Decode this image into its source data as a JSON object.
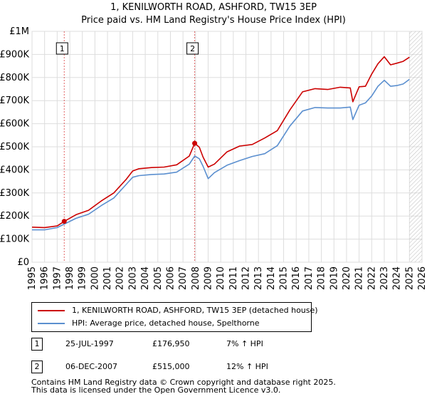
{
  "chart_data": {
    "type": "line",
    "title": "1, KENILWORTH ROAD, ASHFORD, TW15 3EP",
    "subtitle": "Price paid vs. HM Land Registry's House Price Index (HPI)",
    "xlabel": "",
    "ylabel": "",
    "xlim": [
      1995,
      2026
    ],
    "ylim": [
      0,
      1000000
    ],
    "x_ticks": [
      1995,
      1996,
      1997,
      1998,
      1999,
      2000,
      2001,
      2002,
      2003,
      2004,
      2005,
      2006,
      2007,
      2008,
      2009,
      2010,
      2011,
      2012,
      2013,
      2014,
      2015,
      2016,
      2017,
      2018,
      2019,
      2020,
      2021,
      2022,
      2023,
      2024,
      2025,
      2026
    ],
    "y_ticks": [
      0,
      100000,
      200000,
      300000,
      400000,
      500000,
      600000,
      700000,
      800000,
      900000,
      1000000
    ],
    "y_tick_labels": [
      "£0",
      "£100K",
      "£200K",
      "£300K",
      "£400K",
      "£500K",
      "£600K",
      "£700K",
      "£800K",
      "£900K",
      "£1M"
    ],
    "grid": true,
    "series": [
      {
        "name": "1, KENILWORTH ROAD, ASHFORD, TW15 3EP (detached house)",
        "color": "#cc0000",
        "x": [
          1995.0,
          1996.0,
          1997.0,
          1997.56,
          1998.5,
          1999.5,
          2000.5,
          2001.5,
          2002.5,
          2003.0,
          2003.5,
          2004.5,
          2005.5,
          2006.5,
          2007.5,
          2007.93,
          2008.3,
          2008.6,
          2009.0,
          2009.5,
          2010.5,
          2011.5,
          2012.5,
          2013.5,
          2014.5,
          2015.5,
          2016.5,
          2017.5,
          2018.5,
          2019.5,
          2020.3,
          2020.5,
          2021.0,
          2021.5,
          2022.0,
          2022.5,
          2023.0,
          2023.5,
          2024.0,
          2024.5,
          2025.0
        ],
        "values": [
          152000,
          150000,
          157000,
          176950,
          206000,
          225000,
          265000,
          300000,
          360000,
          395000,
          405000,
          410000,
          412000,
          422000,
          460000,
          515000,
          498000,
          455000,
          412000,
          425000,
          478000,
          503000,
          510000,
          538000,
          570000,
          660000,
          738000,
          752000,
          748000,
          758000,
          755000,
          695000,
          760000,
          762000,
          815000,
          860000,
          890000,
          855000,
          862000,
          870000,
          888000
        ]
      },
      {
        "name": "HPI: Average price, detached house, Spelthorne",
        "color": "#5b8fcf",
        "x": [
          1995.0,
          1996.0,
          1997.0,
          1997.56,
          1998.5,
          1999.5,
          2000.5,
          2001.5,
          2002.5,
          2003.0,
          2003.5,
          2004.5,
          2005.5,
          2006.5,
          2007.5,
          2007.93,
          2008.3,
          2008.6,
          2009.0,
          2009.5,
          2010.5,
          2011.5,
          2012.5,
          2013.5,
          2014.5,
          2015.5,
          2016.5,
          2017.5,
          2018.5,
          2019.5,
          2020.3,
          2020.5,
          2021.0,
          2021.5,
          2022.0,
          2022.5,
          2023.0,
          2023.5,
          2024.0,
          2024.5,
          2025.0
        ],
        "values": [
          140000,
          140000,
          150000,
          165000,
          190000,
          208000,
          245000,
          278000,
          338000,
          368000,
          375000,
          380000,
          382000,
          390000,
          425000,
          460000,
          448000,
          415000,
          362000,
          388000,
          420000,
          440000,
          458000,
          470000,
          505000,
          590000,
          655000,
          670000,
          668000,
          668000,
          672000,
          618000,
          680000,
          690000,
          720000,
          762000,
          788000,
          762000,
          765000,
          772000,
          792000
        ]
      }
    ],
    "sales": [
      {
        "label": "1",
        "x": 1997.56,
        "value": 176950
      },
      {
        "label": "2",
        "x": 2007.93,
        "value": 515000
      }
    ],
    "forecast_from": 2025.0,
    "legend_position": "below"
  },
  "legend": {
    "property_label": "1, KENILWORTH ROAD, ASHFORD, TW15 3EP (detached house)",
    "hpi_label": "HPI: Average price, detached house, Spelthorne"
  },
  "sales_table": [
    {
      "label": "1",
      "date": "25-JUL-1997",
      "price": "£176,950",
      "hpi": "7% ↑ HPI"
    },
    {
      "label": "2",
      "date": "06-DEC-2007",
      "price": "£515,000",
      "hpi": "12% ↑ HPI"
    }
  ],
  "footer": {
    "line1": "Contains HM Land Registry data © Crown copyright and database right 2025.",
    "line2": "This data is licensed under the Open Government Licence v3.0."
  }
}
